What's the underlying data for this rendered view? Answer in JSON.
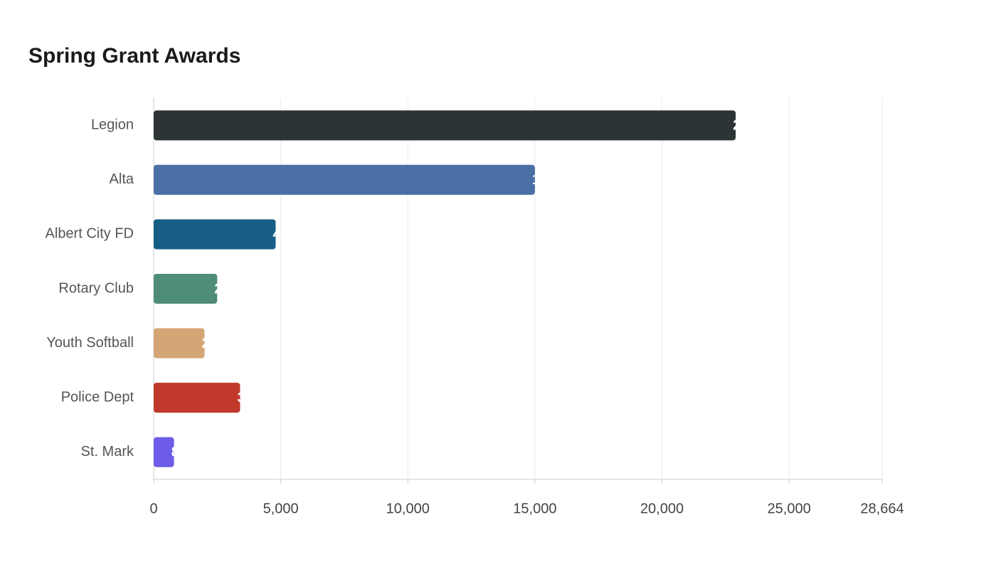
{
  "chart_data": {
    "type": "bar",
    "orientation": "horizontal",
    "title": "Spring Grant Awards",
    "categories": [
      "Legion",
      "Alta",
      "Albert City FD",
      "Rotary Club",
      "Youth Softball",
      "Police Dept",
      "St. Mark"
    ],
    "values": [
      22900,
      15000,
      4800,
      2500,
      2000,
      3400,
      800
    ],
    "colors": [
      "#2d3436",
      "#4a6fa5",
      "#175e87",
      "#4f8c7a",
      "#d4a574",
      "#c0392b",
      "#6c5ce7"
    ],
    "xlim": [
      0,
      28664
    ],
    "xticks": [
      0,
      {
        "value": 5000,
        "label": "5,000"
      },
      {
        "value": 10000,
        "label": "10,000"
      },
      {
        "value": 15000,
        "label": "15,000"
      },
      {
        "value": 20000,
        "label": "20,000"
      },
      {
        "value": 25000,
        "label": "25,000"
      },
      {
        "value": 28664,
        "label": "28,664"
      }
    ],
    "grid": true
  }
}
